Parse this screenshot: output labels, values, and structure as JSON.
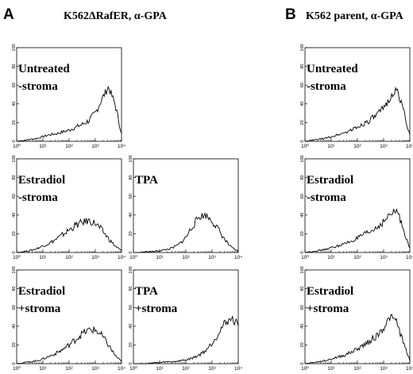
{
  "panel_labels": {
    "a": "A",
    "b": "B"
  },
  "titles": {
    "a": "K562ΔRafER, α-GPA",
    "b": "K562 parent, α-GPA"
  },
  "chart_data": [
    {
      "type": "area",
      "panel": "A",
      "condition_lines": [
        "Untreated",
        "-stroma"
      ],
      "x_scale": "log",
      "xlim": [
        1,
        10000
      ],
      "ylim": [
        0,
        100
      ],
      "x_ticks": [
        "10⁰",
        "10¹",
        "10²",
        "10³",
        "10⁴"
      ],
      "y_ticks": [
        "0",
        "20",
        "40",
        "60",
        "80",
        "100"
      ],
      "x": [
        1,
        1.78,
        3.16,
        5.62,
        10,
        17.8,
        31.6,
        56.2,
        100,
        178,
        316,
        562,
        1000,
        1780,
        3160,
        5620,
        10000
      ],
      "values": [
        0,
        1,
        2,
        3,
        5,
        7,
        8,
        10,
        12,
        15,
        18,
        22,
        30,
        45,
        58,
        40,
        8
      ]
    },
    {
      "type": "area",
      "panel": "A",
      "condition_lines": [
        "Estradiol",
        "-stroma"
      ],
      "x_scale": "log",
      "xlim": [
        1,
        10000
      ],
      "ylim": [
        0,
        100
      ],
      "x_ticks": [
        "10⁰",
        "10¹",
        "10²",
        "10³",
        "10⁴"
      ],
      "y_ticks": [
        "0",
        "20",
        "40",
        "60",
        "80",
        "100"
      ],
      "x": [
        1,
        1.78,
        3.16,
        5.62,
        10,
        17.8,
        31.6,
        56.2,
        100,
        178,
        316,
        562,
        1000,
        1780,
        3160,
        5620,
        10000
      ],
      "values": [
        0,
        1,
        2,
        4,
        7,
        10,
        14,
        19,
        24,
        29,
        32,
        34,
        31,
        24,
        15,
        7,
        2
      ]
    },
    {
      "type": "area",
      "panel": "A",
      "condition_lines": [
        "TPA"
      ],
      "x_scale": "log",
      "xlim": [
        1,
        10000
      ],
      "ylim": [
        0,
        100
      ],
      "x_ticks": [
        "10⁰",
        "10¹",
        "10²",
        "10³",
        "10⁴"
      ],
      "y_ticks": [
        "0",
        "20",
        "40",
        "60",
        "80",
        "100"
      ],
      "x": [
        1,
        1.78,
        3.16,
        5.62,
        10,
        17.8,
        31.6,
        56.2,
        100,
        178,
        316,
        562,
        1000,
        1780,
        3160,
        5620,
        10000
      ],
      "values": [
        0,
        0,
        1,
        1,
        2,
        3,
        5,
        9,
        16,
        28,
        38,
        40,
        34,
        24,
        13,
        5,
        1
      ]
    },
    {
      "type": "area",
      "panel": "A",
      "condition_lines": [
        "Estradiol",
        "+stroma"
      ],
      "x_scale": "log",
      "xlim": [
        1,
        10000
      ],
      "ylim": [
        0,
        100
      ],
      "x_ticks": [
        "10⁰",
        "10¹",
        "10²",
        "10³",
        "10⁴"
      ],
      "y_ticks": [
        "0",
        "20",
        "40",
        "60",
        "80",
        "100"
      ],
      "x": [
        1,
        1.78,
        3.16,
        5.62,
        10,
        17.8,
        31.6,
        56.2,
        100,
        178,
        316,
        562,
        1000,
        1780,
        3160,
        5620,
        10000
      ],
      "values": [
        0,
        1,
        2,
        3,
        5,
        8,
        11,
        15,
        20,
        26,
        32,
        36,
        36,
        30,
        20,
        9,
        2
      ]
    },
    {
      "type": "area",
      "panel": "A",
      "condition_lines": [
        "TPA",
        "+stroma"
      ],
      "x_scale": "log",
      "xlim": [
        1,
        10000
      ],
      "ylim": [
        0,
        100
      ],
      "x_ticks": [
        "10⁰",
        "10¹",
        "10²",
        "10³",
        "10⁴"
      ],
      "y_ticks": [
        "0",
        "20",
        "40",
        "60",
        "80",
        "100"
      ],
      "x": [
        1,
        1.78,
        3.16,
        5.62,
        10,
        17.8,
        31.6,
        56.2,
        100,
        178,
        316,
        562,
        1000,
        1780,
        3160,
        5620,
        10000
      ],
      "values": [
        0,
        0,
        0,
        1,
        1,
        2,
        2,
        3,
        4,
        6,
        9,
        14,
        22,
        33,
        44,
        48,
        42
      ]
    },
    {
      "type": "area",
      "panel": "B",
      "condition_lines": [
        "Untreated",
        "-stroma"
      ],
      "x_scale": "log",
      "xlim": [
        1,
        10000
      ],
      "ylim": [
        0,
        100
      ],
      "x_ticks": [
        "10⁰",
        "10¹",
        "10²",
        "10³",
        "10⁴"
      ],
      "y_ticks": [
        "0",
        "20",
        "40",
        "60",
        "80",
        "100"
      ],
      "x": [
        1,
        1.78,
        3.16,
        5.62,
        10,
        17.8,
        31.6,
        56.2,
        100,
        178,
        316,
        562,
        1000,
        1780,
        3160,
        5620,
        10000
      ],
      "values": [
        0,
        1,
        2,
        3,
        5,
        7,
        9,
        12,
        15,
        19,
        23,
        28,
        35,
        47,
        55,
        35,
        6
      ]
    },
    {
      "type": "area",
      "panel": "B",
      "condition_lines": [
        "Estradiol",
        "-stroma"
      ],
      "x_scale": "log",
      "xlim": [
        1,
        10000
      ],
      "ylim": [
        0,
        100
      ],
      "x_ticks": [
        "10⁰",
        "10¹",
        "10²",
        "10³",
        "10⁴"
      ],
      "y_ticks": [
        "0",
        "20",
        "40",
        "60",
        "80",
        "100"
      ],
      "x": [
        1,
        1.78,
        3.16,
        5.62,
        10,
        17.8,
        31.6,
        56.2,
        100,
        178,
        316,
        562,
        1000,
        1780,
        3160,
        5620,
        10000
      ],
      "values": [
        0,
        1,
        2,
        3,
        5,
        7,
        9,
        12,
        15,
        19,
        22,
        27,
        33,
        40,
        45,
        26,
        4
      ]
    },
    {
      "type": "area",
      "panel": "B",
      "condition_lines": [
        "Estradiol",
        "+stroma"
      ],
      "x_scale": "log",
      "xlim": [
        1,
        10000
      ],
      "ylim": [
        0,
        100
      ],
      "x_ticks": [
        "10⁰",
        "10¹",
        "10²",
        "10³",
        "10⁴"
      ],
      "y_ticks": [
        "0",
        "20",
        "40",
        "60",
        "80",
        "100"
      ],
      "x": [
        1,
        1.78,
        3.16,
        5.62,
        10,
        17.8,
        31.6,
        56.2,
        100,
        178,
        316,
        562,
        1000,
        1780,
        3160,
        5620,
        10000
      ],
      "values": [
        0,
        1,
        2,
        3,
        5,
        7,
        9,
        12,
        16,
        20,
        25,
        30,
        38,
        50,
        45,
        22,
        4
      ]
    }
  ]
}
